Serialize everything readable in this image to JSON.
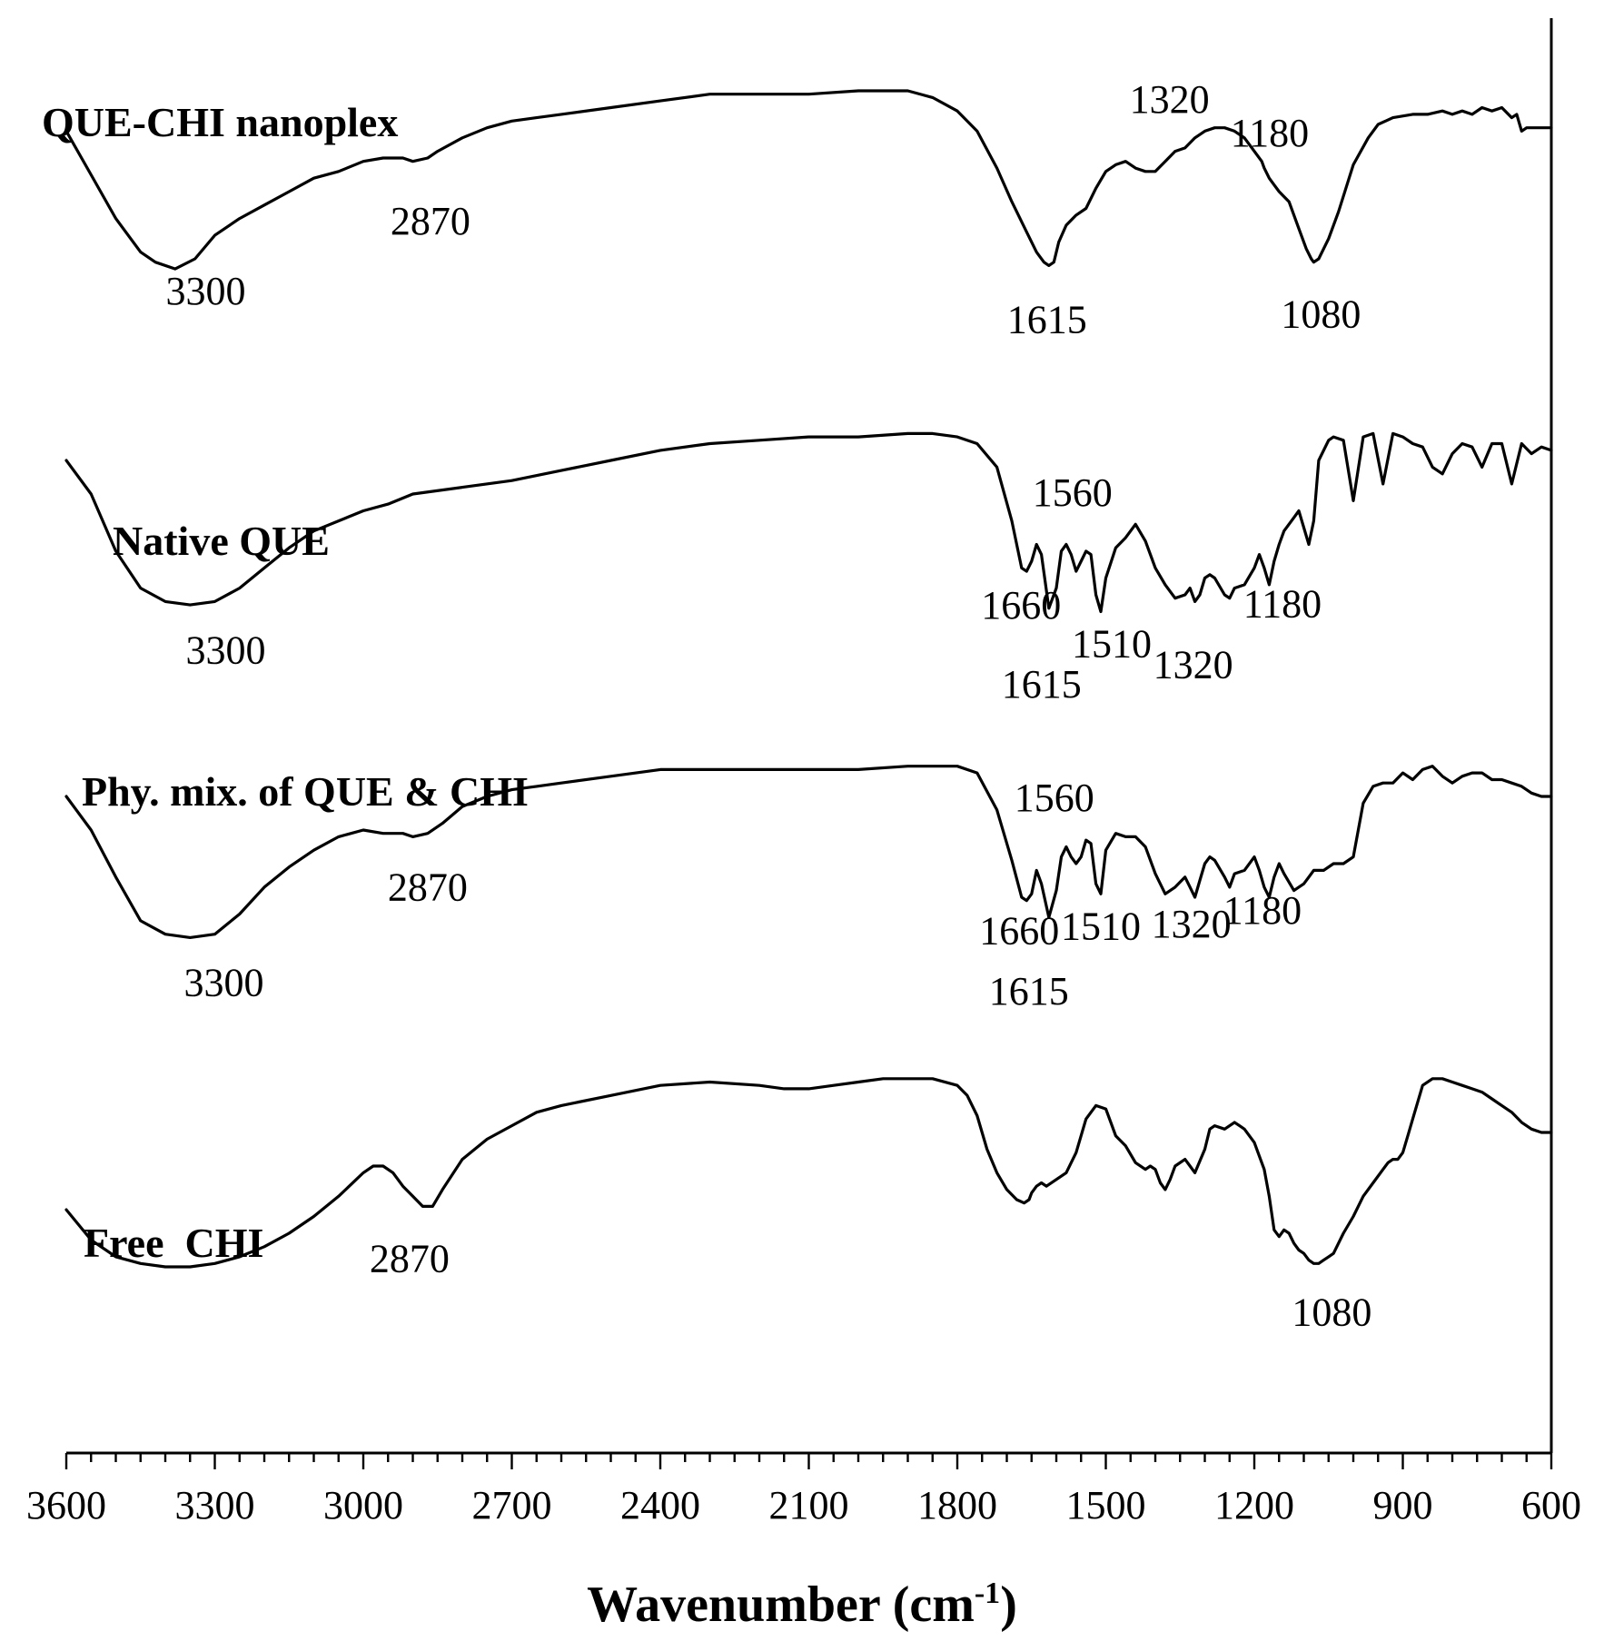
{
  "chart_data": {
    "type": "line",
    "title": "",
    "xlabel": "Wavenumber (cm-1)",
    "xlabel_parts": {
      "base": "Wavenumber (cm",
      "sup": "-1",
      "close": ")"
    },
    "ylabel": "",
    "xlim": [
      3600,
      600
    ],
    "x_direction": "descending",
    "ylim": [
      0,
      4
    ],
    "x_ticks": [
      3600,
      3300,
      3000,
      2700,
      2400,
      2100,
      1800,
      1500,
      1200,
      900,
      600
    ],
    "x_tick_labels": [
      "3600",
      "3300",
      "3000",
      "2700",
      "2400",
      "2100",
      "1800",
      "1500",
      "1200",
      "900",
      "600"
    ],
    "series": [
      {
        "name": "QUE-CHI nanoplex",
        "x": [
          3600,
          3550,
          3500,
          3450,
          3420,
          3380,
          3340,
          3300,
          3250,
          3200,
          3150,
          3100,
          3050,
          3000,
          2960,
          2920,
          2900,
          2870,
          2850,
          2800,
          2750,
          2700,
          2650,
          2600,
          2500,
          2400,
          2300,
          2200,
          2100,
          2000,
          1950,
          1900,
          1850,
          1800,
          1760,
          1720,
          1690,
          1660,
          1640,
          1625,
          1615,
          1605,
          1595,
          1580,
          1560,
          1540,
          1520,
          1500,
          1480,
          1460,
          1440,
          1420,
          1400,
          1380,
          1360,
          1340,
          1320,
          1300,
          1280,
          1260,
          1240,
          1220,
          1200,
          1185,
          1180,
          1170,
          1160,
          1150,
          1130,
          1110,
          1095,
          1085,
          1080,
          1070,
          1050,
          1030,
          1000,
          970,
          950,
          920,
          880,
          850,
          820,
          800,
          780,
          760,
          740,
          720,
          700,
          680,
          670,
          660,
          650,
          630,
          600
        ],
        "y": [
          3.88,
          3.75,
          3.62,
          3.52,
          3.49,
          3.47,
          3.5,
          3.57,
          3.62,
          3.66,
          3.7,
          3.74,
          3.76,
          3.79,
          3.8,
          3.8,
          3.79,
          3.8,
          3.82,
          3.86,
          3.89,
          3.91,
          3.92,
          3.93,
          3.95,
          3.97,
          3.99,
          3.99,
          3.99,
          4.0,
          4.0,
          4.0,
          3.98,
          3.94,
          3.88,
          3.77,
          3.67,
          3.58,
          3.52,
          3.49,
          3.48,
          3.49,
          3.55,
          3.6,
          3.63,
          3.65,
          3.71,
          3.76,
          3.78,
          3.79,
          3.77,
          3.76,
          3.76,
          3.79,
          3.82,
          3.83,
          3.86,
          3.88,
          3.89,
          3.89,
          3.88,
          3.86,
          3.82,
          3.79,
          3.77,
          3.74,
          3.72,
          3.7,
          3.67,
          3.59,
          3.53,
          3.5,
          3.49,
          3.5,
          3.56,
          3.64,
          3.78,
          3.86,
          3.9,
          3.92,
          3.93,
          3.93,
          3.94,
          3.93,
          3.94,
          3.93,
          3.95,
          3.94,
          3.95,
          3.92,
          3.93,
          3.88,
          3.89,
          3.89,
          3.89
        ],
        "peaks": [
          {
            "x": 3300,
            "label": "3300"
          },
          {
            "x": 2870,
            "label": "2870"
          },
          {
            "x": 1615,
            "label": "1615"
          },
          {
            "x": 1320,
            "label": "1320"
          },
          {
            "x": 1180,
            "label": "1180"
          },
          {
            "x": 1080,
            "label": "1080"
          }
        ]
      },
      {
        "name": "Native QUE",
        "x": [
          3600,
          3550,
          3500,
          3450,
          3400,
          3350,
          3300,
          3250,
          3200,
          3150,
          3100,
          3050,
          3000,
          2950,
          2900,
          2800,
          2700,
          2600,
          2500,
          2400,
          2300,
          2200,
          2100,
          2000,
          1900,
          1850,
          1800,
          1760,
          1720,
          1690,
          1670,
          1660,
          1650,
          1640,
          1630,
          1615,
          1600,
          1590,
          1580,
          1570,
          1560,
          1550,
          1540,
          1530,
          1520,
          1510,
          1500,
          1480,
          1460,
          1440,
          1420,
          1400,
          1380,
          1360,
          1340,
          1330,
          1320,
          1310,
          1300,
          1290,
          1280,
          1260,
          1250,
          1240,
          1220,
          1200,
          1190,
          1180,
          1170,
          1160,
          1150,
          1140,
          1120,
          1110,
          1100,
          1090,
          1080,
          1070,
          1050,
          1040,
          1020,
          1000,
          980,
          960,
          940,
          920,
          900,
          880,
          860,
          840,
          820,
          800,
          780,
          760,
          740,
          720,
          700,
          680,
          660,
          640,
          620,
          600
        ],
        "y": [
          2.9,
          2.8,
          2.63,
          2.52,
          2.48,
          2.47,
          2.48,
          2.52,
          2.58,
          2.64,
          2.69,
          2.72,
          2.75,
          2.77,
          2.8,
          2.82,
          2.84,
          2.87,
          2.9,
          2.93,
          2.95,
          2.96,
          2.97,
          2.97,
          2.98,
          2.98,
          2.97,
          2.95,
          2.88,
          2.72,
          2.58,
          2.57,
          2.6,
          2.65,
          2.62,
          2.46,
          2.52,
          2.63,
          2.65,
          2.62,
          2.57,
          2.6,
          2.63,
          2.62,
          2.5,
          2.45,
          2.55,
          2.64,
          2.67,
          2.71,
          2.66,
          2.58,
          2.53,
          2.49,
          2.5,
          2.52,
          2.48,
          2.5,
          2.55,
          2.56,
          2.55,
          2.5,
          2.49,
          2.52,
          2.53,
          2.58,
          2.62,
          2.58,
          2.53,
          2.6,
          2.65,
          2.69,
          2.73,
          2.75,
          2.7,
          2.65,
          2.72,
          2.9,
          2.96,
          2.97,
          2.96,
          2.78,
          2.97,
          2.98,
          2.83,
          2.98,
          2.97,
          2.95,
          2.94,
          2.88,
          2.86,
          2.92,
          2.95,
          2.94,
          2.88,
          2.95,
          2.95,
          2.83,
          2.95,
          2.92,
          2.94,
          2.93
        ],
        "peaks": [
          {
            "x": 3300,
            "label": "3300"
          },
          {
            "x": 1660,
            "label": "1660"
          },
          {
            "x": 1615,
            "label": "1615"
          },
          {
            "x": 1560,
            "label": "1560"
          },
          {
            "x": 1510,
            "label": "1510"
          },
          {
            "x": 1320,
            "label": "1320"
          },
          {
            "x": 1180,
            "label": "1180"
          }
        ]
      },
      {
        "name": "Phy. mix. of QUE & CHI",
        "x": [
          3600,
          3550,
          3500,
          3450,
          3400,
          3350,
          3300,
          3250,
          3200,
          3150,
          3100,
          3050,
          3000,
          2960,
          2920,
          2900,
          2870,
          2840,
          2800,
          2750,
          2700,
          2650,
          2600,
          2500,
          2400,
          2300,
          2200,
          2100,
          2000,
          1900,
          1850,
          1800,
          1760,
          1720,
          1690,
          1670,
          1660,
          1650,
          1640,
          1630,
          1615,
          1600,
          1590,
          1580,
          1570,
          1560,
          1550,
          1540,
          1530,
          1520,
          1510,
          1500,
          1480,
          1460,
          1440,
          1420,
          1400,
          1380,
          1360,
          1340,
          1330,
          1320,
          1310,
          1300,
          1290,
          1280,
          1260,
          1250,
          1240,
          1220,
          1200,
          1190,
          1180,
          1170,
          1160,
          1150,
          1140,
          1120,
          1100,
          1090,
          1080,
          1060,
          1040,
          1020,
          1000,
          980,
          960,
          940,
          920,
          900,
          880,
          860,
          840,
          820,
          800,
          780,
          760,
          740,
          720,
          700,
          680,
          660,
          640,
          620,
          600
        ],
        "y": [
          1.9,
          1.8,
          1.66,
          1.53,
          1.49,
          1.48,
          1.49,
          1.55,
          1.63,
          1.69,
          1.74,
          1.78,
          1.8,
          1.79,
          1.79,
          1.78,
          1.79,
          1.82,
          1.87,
          1.9,
          1.92,
          1.93,
          1.94,
          1.96,
          1.98,
          1.98,
          1.98,
          1.98,
          1.98,
          1.99,
          1.99,
          1.99,
          1.97,
          1.86,
          1.71,
          1.6,
          1.59,
          1.61,
          1.68,
          1.64,
          1.54,
          1.62,
          1.72,
          1.75,
          1.72,
          1.7,
          1.72,
          1.77,
          1.76,
          1.64,
          1.61,
          1.74,
          1.79,
          1.78,
          1.78,
          1.75,
          1.67,
          1.61,
          1.63,
          1.66,
          1.63,
          1.6,
          1.65,
          1.7,
          1.72,
          1.71,
          1.66,
          1.63,
          1.67,
          1.68,
          1.72,
          1.68,
          1.63,
          1.6,
          1.66,
          1.7,
          1.67,
          1.62,
          1.64,
          1.66,
          1.68,
          1.68,
          1.7,
          1.7,
          1.72,
          1.88,
          1.93,
          1.94,
          1.94,
          1.97,
          1.95,
          1.98,
          1.99,
          1.96,
          1.94,
          1.96,
          1.97,
          1.97,
          1.95,
          1.95,
          1.94,
          1.93,
          1.91,
          1.9,
          1.9
        ],
        "peaks": [
          {
            "x": 3300,
            "label": "3300"
          },
          {
            "x": 2870,
            "label": "2870"
          },
          {
            "x": 1660,
            "label": "1660"
          },
          {
            "x": 1615,
            "label": "1615"
          },
          {
            "x": 1560,
            "label": "1560"
          },
          {
            "x": 1510,
            "label": "1510"
          },
          {
            "x": 1320,
            "label": "1320"
          },
          {
            "x": 1180,
            "label": "1180"
          }
        ]
      },
      {
        "name": "Free  CHI",
        "x": [
          3600,
          3550,
          3500,
          3450,
          3400,
          3350,
          3300,
          3250,
          3200,
          3150,
          3100,
          3050,
          3000,
          2980,
          2960,
          2940,
          2920,
          2900,
          2880,
          2860,
          2840,
          2800,
          2750,
          2700,
          2650,
          2600,
          2500,
          2400,
          2300,
          2200,
          2150,
          2100,
          2050,
          2000,
          1950,
          1900,
          1850,
          1800,
          1780,
          1760,
          1740,
          1720,
          1700,
          1680,
          1665,
          1655,
          1650,
          1640,
          1630,
          1620,
          1600,
          1580,
          1560,
          1540,
          1520,
          1500,
          1490,
          1480,
          1460,
          1440,
          1420,
          1410,
          1400,
          1390,
          1380,
          1370,
          1360,
          1340,
          1330,
          1320,
          1300,
          1290,
          1280,
          1260,
          1240,
          1230,
          1220,
          1200,
          1180,
          1170,
          1160,
          1150,
          1140,
          1130,
          1120,
          1110,
          1100,
          1090,
          1080,
          1070,
          1060,
          1050,
          1040,
          1020,
          1000,
          980,
          960,
          940,
          930,
          920,
          910,
          900,
          890,
          880,
          860,
          840,
          820,
          800,
          780,
          760,
          740,
          720,
          700,
          680,
          660,
          640,
          620,
          600
        ],
        "y": [
          0.67,
          0.58,
          0.53,
          0.51,
          0.5,
          0.5,
          0.51,
          0.53,
          0.56,
          0.6,
          0.65,
          0.71,
          0.78,
          0.8,
          0.8,
          0.78,
          0.74,
          0.71,
          0.68,
          0.68,
          0.73,
          0.82,
          0.88,
          0.92,
          0.96,
          0.98,
          1.01,
          1.04,
          1.05,
          1.04,
          1.03,
          1.03,
          1.04,
          1.05,
          1.06,
          1.06,
          1.06,
          1.04,
          1.01,
          0.95,
          0.85,
          0.78,
          0.73,
          0.7,
          0.69,
          0.7,
          0.72,
          0.74,
          0.75,
          0.74,
          0.76,
          0.78,
          0.84,
          0.94,
          0.98,
          0.97,
          0.93,
          0.89,
          0.86,
          0.81,
          0.79,
          0.8,
          0.79,
          0.75,
          0.73,
          0.76,
          0.8,
          0.82,
          0.8,
          0.78,
          0.85,
          0.91,
          0.92,
          0.91,
          0.93,
          0.92,
          0.91,
          0.87,
          0.79,
          0.71,
          0.61,
          0.59,
          0.61,
          0.6,
          0.57,
          0.55,
          0.54,
          0.52,
          0.51,
          0.51,
          0.52,
          0.53,
          0.54,
          0.6,
          0.65,
          0.71,
          0.75,
          0.79,
          0.81,
          0.82,
          0.82,
          0.84,
          0.89,
          0.94,
          1.04,
          1.06,
          1.06,
          1.05,
          1.04,
          1.03,
          1.02,
          1.0,
          0.98,
          0.96,
          0.93,
          0.91,
          0.9,
          0.9
        ],
        "peaks": [
          {
            "x": 2870,
            "label": "2870"
          },
          {
            "x": 1080,
            "label": "1080"
          }
        ]
      }
    ]
  }
}
